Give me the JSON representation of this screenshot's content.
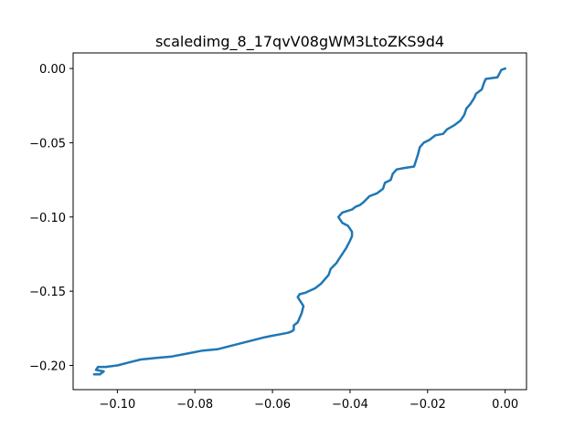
{
  "chart_data": {
    "type": "line",
    "title": "scaledimg_8_17qvV08gWM3LtoZKS9d4",
    "xlabel": "",
    "ylabel": "",
    "xlim": [
      -0.1114,
      0.0055
    ],
    "ylim": [
      -0.2163,
      0.0105
    ],
    "x_ticks": [
      -0.1,
      -0.08,
      -0.06,
      -0.04,
      -0.02,
      0.0
    ],
    "x_tick_labels": [
      "−0.10",
      "−0.08",
      "−0.06",
      "−0.04",
      "−0.02",
      "0.00"
    ],
    "y_ticks": [
      0.0,
      -0.05,
      -0.1,
      -0.15,
      -0.2
    ],
    "y_tick_labels": [
      "0.00",
      "−0.05",
      "−0.10",
      "−0.15",
      "−0.20"
    ],
    "grid": false,
    "colors": {
      "series": "#1f77b4",
      "axes": "#000000"
    },
    "series": [
      {
        "x": [
          0.0,
          -0.001,
          -0.002,
          -0.005,
          -0.0055,
          -0.006,
          -0.0075,
          -0.008,
          -0.009,
          -0.01,
          -0.0105,
          -0.0115,
          -0.013,
          -0.015,
          -0.016,
          -0.018,
          -0.0195,
          -0.021,
          -0.022,
          -0.0225,
          -0.023,
          -0.0235,
          -0.026,
          -0.028,
          -0.029,
          -0.0295,
          -0.031,
          -0.0315,
          -0.033,
          -0.035,
          -0.0365,
          -0.0375,
          -0.0385,
          -0.0395,
          -0.042,
          -0.043,
          -0.042,
          -0.0405,
          -0.0395,
          -0.0395,
          -0.04,
          -0.041,
          -0.0425,
          -0.0435,
          -0.045,
          -0.0455,
          -0.0465,
          -0.0475,
          -0.049,
          -0.0515,
          -0.053,
          -0.0535,
          -0.052,
          -0.0525,
          -0.053,
          -0.0535,
          -0.0545,
          -0.0545,
          -0.055,
          -0.056,
          -0.058,
          -0.06,
          -0.062,
          -0.065,
          -0.068,
          -0.071,
          -0.074,
          -0.078,
          -0.082,
          -0.086,
          -0.09,
          -0.094,
          -0.097,
          -0.1,
          -0.103,
          -0.105,
          -0.1055,
          -0.1035,
          -0.1045,
          -0.106
        ],
        "y": [
          0.0,
          -0.001,
          -0.006,
          -0.007,
          -0.01,
          -0.014,
          -0.017,
          -0.02,
          -0.024,
          -0.027,
          -0.031,
          -0.035,
          -0.038,
          -0.041,
          -0.044,
          -0.045,
          -0.048,
          -0.05,
          -0.053,
          -0.058,
          -0.062,
          -0.066,
          -0.067,
          -0.068,
          -0.071,
          -0.075,
          -0.077,
          -0.081,
          -0.084,
          -0.086,
          -0.09,
          -0.092,
          -0.093,
          -0.095,
          -0.097,
          -0.1,
          -0.104,
          -0.106,
          -0.11,
          -0.113,
          -0.116,
          -0.121,
          -0.127,
          -0.131,
          -0.135,
          -0.139,
          -0.142,
          -0.145,
          -0.148,
          -0.151,
          -0.152,
          -0.154,
          -0.16,
          -0.165,
          -0.168,
          -0.171,
          -0.173,
          -0.176,
          -0.177,
          -0.178,
          -0.179,
          -0.18,
          -0.181,
          -0.183,
          -0.185,
          -0.187,
          -0.189,
          -0.19,
          -0.192,
          -0.194,
          -0.195,
          -0.196,
          -0.198,
          -0.2,
          -0.201,
          -0.201,
          -0.203,
          -0.204,
          -0.206,
          -0.206
        ]
      }
    ]
  }
}
